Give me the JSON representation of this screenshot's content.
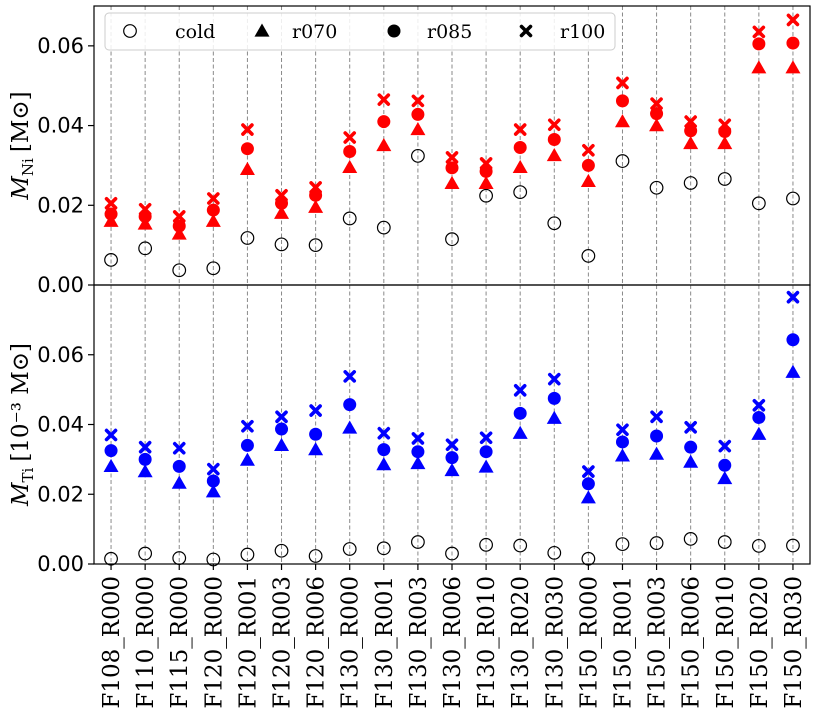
{
  "chart_data": [
    {
      "type": "scatter",
      "panel": "top",
      "ylabel_main": "M",
      "ylabel_sub": "Ni",
      "ylabel_unit": "[M⊙]",
      "ylim": [
        0,
        0.07
      ],
      "yticks": [
        0.0,
        0.02,
        0.04,
        0.06
      ],
      "ytick_labels": [
        "0.00",
        "0.02",
        "0.04",
        "0.06"
      ],
      "grid": "vertical dashed",
      "color": "#ff0000",
      "categories": [
        "F108_R000",
        "F110_R000",
        "F115_R000",
        "F120_R000",
        "F120_R001",
        "F120_R003",
        "F120_R006",
        "F130_R000",
        "F130_R001",
        "F130_R003",
        "F130_R006",
        "F130_R010",
        "F130_R020",
        "F130_R030",
        "F150_R000",
        "F150_R001",
        "F150_R003",
        "F150_R006",
        "F150_R010",
        "F150_R020",
        "F150_R030"
      ],
      "series": [
        {
          "name": "cold",
          "marker": "open-circle",
          "values": [
            0.0063,
            0.0092,
            0.0037,
            0.0042,
            0.0118,
            0.0102,
            0.01,
            0.0167,
            0.0144,
            0.0324,
            0.0115,
            0.0224,
            0.0233,
            0.0155,
            0.0073,
            0.0311,
            0.0244,
            0.0256,
            0.0266,
            0.0205,
            0.0217
          ]
        },
        {
          "name": "r070",
          "marker": "triangle",
          "values": [
            0.016,
            0.0153,
            0.0128,
            0.016,
            0.029,
            0.018,
            0.0195,
            0.0295,
            0.035,
            0.039,
            0.0255,
            0.0255,
            0.0295,
            0.0325,
            0.026,
            0.041,
            0.04,
            0.0355,
            0.0355,
            0.0545,
            0.0545
          ]
        },
        {
          "name": "r085",
          "marker": "filled-circle",
          "values": [
            0.0178,
            0.0172,
            0.0148,
            0.0188,
            0.0342,
            0.0205,
            0.0225,
            0.0335,
            0.041,
            0.0428,
            0.0294,
            0.0285,
            0.0345,
            0.0365,
            0.03,
            0.0462,
            0.043,
            0.0387,
            0.0385,
            0.0605,
            0.0607
          ]
        },
        {
          "name": "r100",
          "marker": "x",
          "values": [
            0.0205,
            0.019,
            0.0172,
            0.0217,
            0.039,
            0.0225,
            0.0245,
            0.037,
            0.0465,
            0.0462,
            0.032,
            0.0305,
            0.039,
            0.0402,
            0.0338,
            0.0507,
            0.0455,
            0.041,
            0.0402,
            0.0635,
            0.0665
          ]
        }
      ],
      "legend": {
        "placement": "top-left",
        "orientation": "horizontal"
      }
    },
    {
      "type": "scatter",
      "panel": "bottom",
      "ylabel_main": "M",
      "ylabel_sub": "Ti",
      "ylabel_unit": "[10⁻³ M⊙]",
      "ylim": [
        0,
        0.08
      ],
      "yticks": [
        0.0,
        0.02,
        0.04,
        0.06
      ],
      "ytick_labels": [
        "0.00",
        "0.02",
        "0.04",
        "0.06"
      ],
      "grid": "vertical dashed",
      "color": "#0000ff",
      "categories": [
        "F108_R000",
        "F110_R000",
        "F115_R000",
        "F120_R000",
        "F120_R001",
        "F120_R003",
        "F120_R006",
        "F130_R000",
        "F130_R001",
        "F130_R003",
        "F130_R006",
        "F130_R010",
        "F130_R020",
        "F130_R030",
        "F150_R000",
        "F150_R001",
        "F150_R003",
        "F150_R006",
        "F150_R010",
        "F150_R020",
        "F150_R030"
      ],
      "series": [
        {
          "name": "cold",
          "marker": "open-circle",
          "values": [
            0.0015,
            0.003,
            0.0017,
            0.0013,
            0.0027,
            0.0038,
            0.0023,
            0.0043,
            0.0045,
            0.0063,
            0.003,
            0.0055,
            0.0053,
            0.0032,
            0.0015,
            0.0057,
            0.006,
            0.0072,
            0.0063,
            0.0052,
            0.0053
          ]
        },
        {
          "name": "r070",
          "marker": "triangle",
          "values": [
            0.028,
            0.0265,
            0.0232,
            0.0207,
            0.0298,
            0.034,
            0.0328,
            0.039,
            0.0285,
            0.0288,
            0.0268,
            0.0278,
            0.0375,
            0.0418,
            0.019,
            0.031,
            0.0315,
            0.0292,
            0.0245,
            0.0372,
            0.055
          ]
        },
        {
          "name": "r085",
          "marker": "filled-circle",
          "values": [
            0.0325,
            0.03,
            0.028,
            0.0238,
            0.034,
            0.0387,
            0.0372,
            0.0457,
            0.0328,
            0.0322,
            0.0305,
            0.0322,
            0.0432,
            0.0475,
            0.023,
            0.035,
            0.0367,
            0.0335,
            0.0283,
            0.042,
            0.0643
          ]
        },
        {
          "name": "r100",
          "marker": "x",
          "values": [
            0.037,
            0.0335,
            0.0332,
            0.0272,
            0.0395,
            0.0422,
            0.044,
            0.0538,
            0.0375,
            0.036,
            0.0342,
            0.0362,
            0.0498,
            0.053,
            0.0265,
            0.0385,
            0.0422,
            0.0392,
            0.0338,
            0.0455,
            0.0765
          ]
        }
      ]
    }
  ]
}
